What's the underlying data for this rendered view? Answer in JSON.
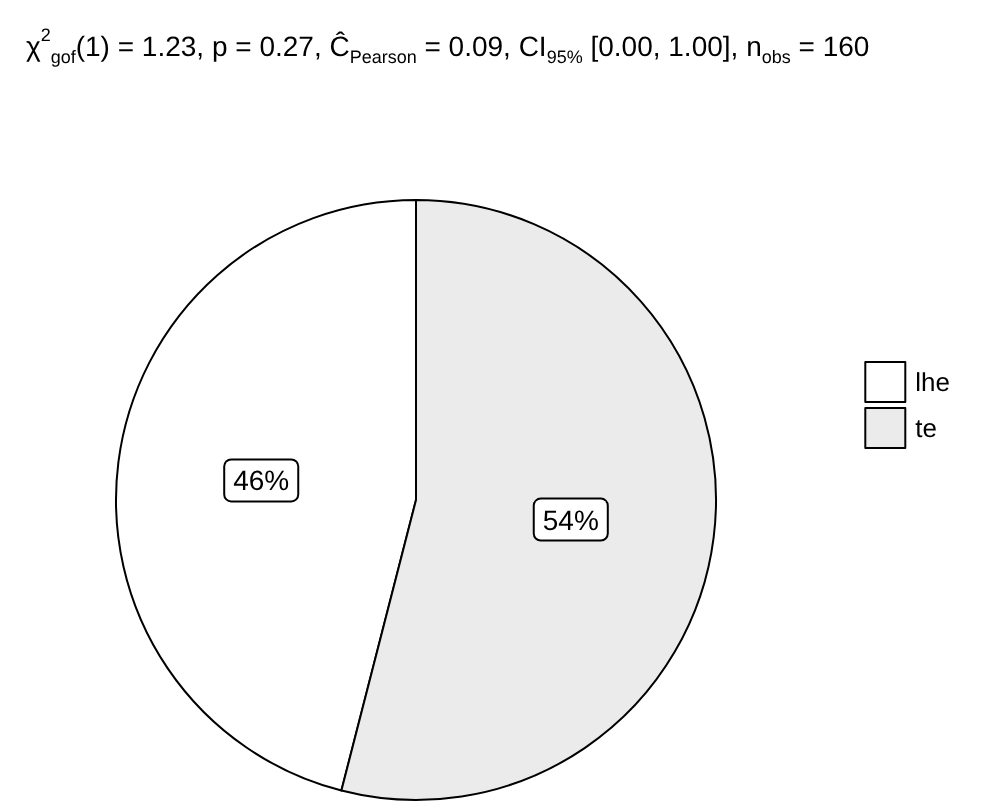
{
  "chart_data": {
    "type": "pie",
    "title": "χ$^{2}$$_{gof}$(1) = 1.23, p = 0.27, Ĉ$_{Pearson}$ = 0.09, CI$_{95%}$ [0.00, 1.00], n$_{obs}$ = 160",
    "categories": [
      "lhe",
      "te"
    ],
    "values": [
      46,
      54
    ],
    "colors": [
      "#ffffff",
      "#ebebeb"
    ],
    "value_labels": [
      "46%",
      "54%"
    ],
    "legend": "right"
  }
}
